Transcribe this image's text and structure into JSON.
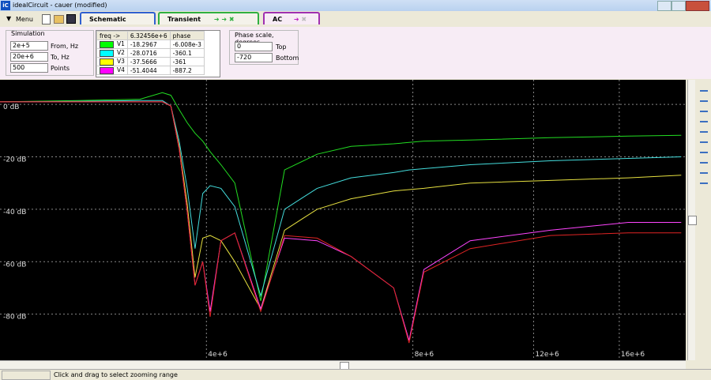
{
  "window": {
    "title": "idealCircuit - cauer (modified)"
  },
  "toolbar": {
    "menu": "Menu",
    "tabs": [
      "Schematic",
      "Transient",
      "AC"
    ]
  },
  "simulation": {
    "title": "Simulation",
    "from": "2e+5",
    "from_label": "From, Hz",
    "to": "20e+6",
    "to_label": "To, Hz",
    "points": "500",
    "points_label": "Points"
  },
  "probe_table": {
    "header": [
      "freq ->",
      "6.32456e+6",
      "phase"
    ],
    "rows": [
      {
        "name": "V1",
        "color": "#00ff00",
        "value": "-18.2967",
        "phase": "-6.008e-3"
      },
      {
        "name": "V2",
        "color": "#00ffff",
        "value": "-28.0716",
        "phase": "-360.1"
      },
      {
        "name": "V3",
        "color": "#ffff00",
        "value": "-37.5666",
        "phase": "-361"
      },
      {
        "name": "V4",
        "color": "#ff00ff",
        "value": "-51.4044",
        "phase": "-887.2"
      }
    ]
  },
  "phase_scale": {
    "title": "Phase scale, degrees",
    "top": "0",
    "top_label": "Top",
    "bottom": "-720",
    "bottom_label": "Bottom"
  },
  "chart_data": {
    "type": "line",
    "log_x": true,
    "grid": true,
    "x": [
      2000000,
      2600000,
      3200000,
      3450000,
      3550000,
      3650000,
      3750000,
      3850000,
      3950000,
      4050000,
      4200000,
      4400000,
      4800000,
      5200000,
      5800000,
      6500000,
      7500000,
      7900000,
      8300000,
      9700000,
      12700000,
      16500000,
      19700000
    ],
    "series": [
      {
        "color": "#22dd22",
        "values": [
          1,
          1.5,
          2,
          4.5,
          3.5,
          -2,
          -7,
          -11,
          -14,
          -18,
          -23,
          -30,
          -75,
          -25,
          -19,
          -16,
          -15,
          -14.5,
          -14,
          -13.6,
          -12.7,
          -12.1,
          -11.8
        ]
      },
      {
        "color": "#44dddd",
        "values": [
          1,
          1.2,
          1.5,
          1.5,
          -0.6,
          -14,
          -32,
          -55,
          -34,
          -31,
          -32,
          -39,
          -73,
          -40,
          -32,
          -28,
          -26,
          -25,
          -24.5,
          -23,
          -21.5,
          -20.6,
          -20
        ]
      },
      {
        "color": "#e6e040",
        "values": [
          1,
          1,
          1,
          1,
          -0.6,
          -16,
          -38,
          -66,
          -51,
          -50,
          -52,
          -60,
          -78,
          -48,
          -40,
          -36,
          -33,
          -32.5,
          -32,
          -30,
          -29,
          -28,
          -27
        ]
      },
      {
        "color": "#ff44ff",
        "values": [
          1,
          1,
          1,
          1,
          -0.6,
          -17,
          -41,
          -69,
          -60,
          -79,
          -52,
          -49,
          -78,
          -51,
          -52,
          -58,
          -70,
          -90,
          -63,
          -52,
          -48,
          -45,
          -45
        ]
      },
      {
        "color": "#e02424",
        "values": [
          1,
          1,
          1,
          1,
          -0.6,
          -17,
          -41,
          -69,
          -60,
          -81,
          -52,
          -49,
          -79,
          -50,
          -51,
          -58,
          -70,
          -91,
          -64,
          -55,
          -50,
          -49,
          -49
        ]
      }
    ],
    "xlim": [
      2000000,
      20000000
    ],
    "ylim": [
      -97.6,
      9.4
    ],
    "xticks": [
      {
        "value": 4000000,
        "label": "4e+6"
      },
      {
        "value": 8000000,
        "label": "8e+6"
      },
      {
        "value": 12000000,
        "label": "12e+6"
      },
      {
        "value": 16000000,
        "label": "16e+6"
      }
    ],
    "yticks": [
      {
        "value": 0,
        "label": "0 dB"
      },
      {
        "value": -20,
        "label": "-20 dB"
      },
      {
        "value": -40,
        "label": "-40 dB"
      },
      {
        "value": -60,
        "label": "-60 dB"
      },
      {
        "value": -80,
        "label": "-80 dB"
      }
    ]
  },
  "status_bar": {
    "message": "Click and drag to select zooming range"
  }
}
